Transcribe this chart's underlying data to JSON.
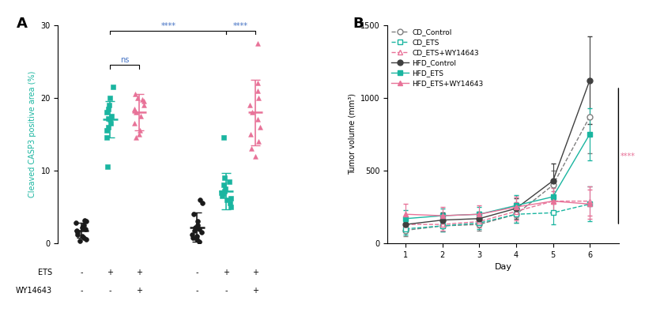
{
  "panel_A": {
    "ylabel": "Cleaved CASP3 positive area (%)",
    "ylim": [
      0,
      30
    ],
    "yticks": [
      0,
      10,
      20,
      30
    ],
    "scatter_data": {
      "CD_ctrl": [
        0.3,
        0.5,
        0.8,
        1.0,
        1.2,
        1.5,
        1.8,
        2.0,
        2.2,
        2.5,
        2.8,
        3.0,
        3.2
      ],
      "CD_ETS": [
        10.5,
        14.5,
        15.5,
        16.0,
        16.5,
        17.0,
        17.2,
        17.5,
        18.0,
        18.5,
        19.0,
        20.0,
        21.5
      ],
      "CD_ETS_WY": [
        14.5,
        15.0,
        15.5,
        16.5,
        17.5,
        18.0,
        18.5,
        19.0,
        19.5,
        19.8,
        20.0,
        20.5
      ],
      "HFD_ctrl": [
        0.2,
        0.5,
        0.8,
        1.0,
        1.2,
        1.5,
        1.8,
        2.0,
        2.2,
        2.5,
        3.0,
        4.0,
        5.5,
        6.0
      ],
      "HFD_ETS": [
        5.0,
        5.5,
        6.0,
        6.2,
        6.5,
        6.8,
        7.0,
        7.2,
        7.5,
        8.0,
        8.5,
        9.0,
        14.5
      ],
      "HFD_ETS_WY": [
        12.0,
        13.0,
        14.0,
        15.0,
        16.0,
        17.0,
        18.0,
        19.0,
        20.0,
        21.0,
        22.0,
        27.5
      ]
    },
    "x_positions": {
      "CD_ctrl": 1,
      "CD_ETS": 2,
      "CD_ETS_WY": 3,
      "HFD_ctrl": 5,
      "HFD_ETS": 6,
      "HFD_ETS_WY": 7
    },
    "colors": {
      "CD_ctrl": "#1a1a1a",
      "CD_ETS": "#1ab5a0",
      "CD_ETS_WY": "#e87298",
      "HFD_ctrl": "#1a1a1a",
      "HFD_ETS": "#1ab5a0",
      "HFD_ETS_WY": "#e87298"
    },
    "markers": {
      "CD_ctrl": "o",
      "CD_ETS": "s",
      "CD_ETS_WY": "^",
      "HFD_ctrl": "o",
      "HFD_ETS": "s",
      "HFD_ETS_WY": "^"
    },
    "means": [
      1.8,
      17.0,
      18.0,
      2.2,
      7.2,
      18.0
    ],
    "errors": [
      1.0,
      2.5,
      2.5,
      2.0,
      2.5,
      4.5
    ],
    "xpos_list": [
      1,
      2,
      3,
      5,
      6,
      7
    ],
    "colors_list": [
      "#1a1a1a",
      "#1ab5a0",
      "#e87298",
      "#1a1a1a",
      "#1ab5a0",
      "#e87298"
    ],
    "ets_labels": [
      "-",
      "+",
      "+",
      "-",
      "+",
      "+"
    ],
    "wy_labels": [
      "-",
      "-",
      "+",
      "-",
      "-",
      "+"
    ],
    "color_teal": "#1ab5a0",
    "color_pink": "#e87298",
    "color_black": "#1a1a1a",
    "color_sig": "#4472c4"
  },
  "panel_B": {
    "ylabel": "Tumor volume (mm³)",
    "xlabel": "Day",
    "ylim": [
      0,
      1500
    ],
    "yticks": [
      0,
      500,
      1000,
      1500
    ],
    "days": [
      1,
      2,
      3,
      4,
      5,
      6
    ],
    "series_order": [
      "CD_Control",
      "CD_ETS",
      "CD_ETS+WY14643",
      "HFD_Control",
      "HFD_ETS",
      "HFD_ETS+WY14643"
    ],
    "series": {
      "CD_Control": {
        "mean": [
          90,
          120,
          130,
          200,
          400,
          870
        ],
        "sem": [
          40,
          40,
          40,
          60,
          100,
          250
        ],
        "color": "#7f7f7f",
        "marker": "o",
        "fill": false,
        "linestyle": "--"
      },
      "CD_ETS": {
        "mean": [
          100,
          120,
          140,
          200,
          210,
          270
        ],
        "sem": [
          40,
          40,
          40,
          60,
          80,
          120
        ],
        "color": "#1ab5a0",
        "marker": "s",
        "fill": false,
        "linestyle": "--"
      },
      "CD_ETS+WY14643": {
        "mean": [
          130,
          130,
          150,
          220,
          290,
          290
        ],
        "sem": [
          50,
          40,
          40,
          60,
          70,
          100
        ],
        "color": "#e87298",
        "marker": "^",
        "fill": false,
        "linestyle": "--"
      },
      "HFD_Control": {
        "mean": [
          130,
          160,
          170,
          240,
          430,
          1120
        ],
        "sem": [
          50,
          50,
          50,
          70,
          120,
          300
        ],
        "color": "#404040",
        "marker": "o",
        "fill": true,
        "linestyle": "-"
      },
      "HFD_ETS": {
        "mean": [
          170,
          190,
          200,
          260,
          320,
          750
        ],
        "sem": [
          60,
          50,
          50,
          70,
          100,
          180
        ],
        "color": "#1ab5a0",
        "marker": "s",
        "fill": true,
        "linestyle": "-"
      },
      "HFD_ETS+WY14643": {
        "mean": [
          200,
          190,
          200,
          250,
          290,
          270
        ],
        "sem": [
          70,
          60,
          60,
          70,
          90,
          100
        ],
        "color": "#e87298",
        "marker": "^",
        "fill": true,
        "linestyle": "-"
      }
    },
    "bracket_color": "#e87298",
    "sig_label": "****"
  }
}
